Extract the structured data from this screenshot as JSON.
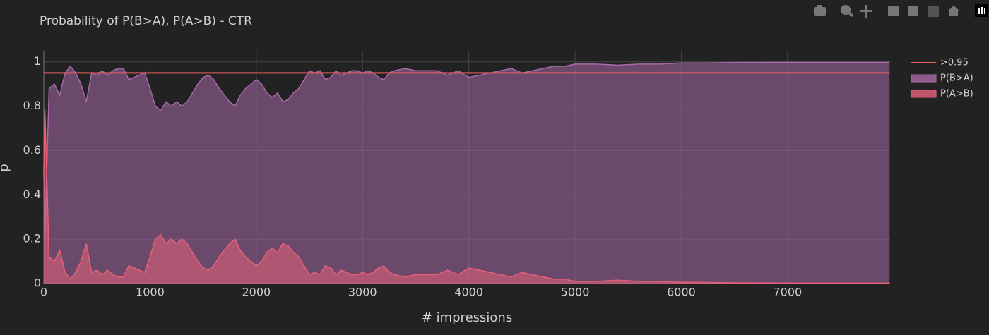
{
  "chart_data": {
    "type": "area",
    "title": "Probability of P(B>A), P(A>B) - CTR",
    "x_label": "# impressions",
    "y_label": "p",
    "x": [
      0,
      10,
      50,
      100,
      150,
      200,
      250,
      300,
      350,
      400,
      450,
      500,
      550,
      600,
      650,
      700,
      750,
      800,
      850,
      900,
      950,
      1000,
      1050,
      1100,
      1150,
      1200,
      1250,
      1300,
      1350,
      1400,
      1450,
      1500,
      1550,
      1600,
      1650,
      1700,
      1750,
      1800,
      1850,
      1900,
      1950,
      2000,
      2050,
      2100,
      2150,
      2200,
      2250,
      2300,
      2350,
      2400,
      2450,
      2500,
      2550,
      2600,
      2650,
      2700,
      2750,
      2800,
      2850,
      2900,
      2950,
      3000,
      3050,
      3100,
      3150,
      3200,
      3250,
      3300,
      3400,
      3500,
      3600,
      3700,
      3800,
      3900,
      4000,
      4100,
      4200,
      4300,
      4400,
      4500,
      4600,
      4700,
      4800,
      4900,
      5000,
      5200,
      5400,
      5600,
      5800,
      6000,
      6200,
      6500,
      7000,
      7500,
      7960
    ],
    "series": [
      {
        "name": ">0.95",
        "kind": "line",
        "color": "#e8605d",
        "x": [
          0,
          7960
        ],
        "values": [
          0.95,
          0.95
        ]
      },
      {
        "name": "P(B>A)",
        "kind": "area",
        "color": "#a86aa8",
        "values": [
          0.5,
          0.21,
          0.88,
          0.9,
          0.85,
          0.95,
          0.98,
          0.95,
          0.9,
          0.82,
          0.95,
          0.94,
          0.96,
          0.94,
          0.96,
          0.97,
          0.97,
          0.92,
          0.93,
          0.94,
          0.95,
          0.88,
          0.8,
          0.78,
          0.82,
          0.8,
          0.82,
          0.8,
          0.82,
          0.86,
          0.9,
          0.93,
          0.94,
          0.92,
          0.88,
          0.85,
          0.82,
          0.8,
          0.85,
          0.88,
          0.9,
          0.92,
          0.9,
          0.86,
          0.84,
          0.86,
          0.82,
          0.83,
          0.86,
          0.88,
          0.92,
          0.96,
          0.95,
          0.96,
          0.92,
          0.93,
          0.96,
          0.94,
          0.95,
          0.96,
          0.96,
          0.95,
          0.96,
          0.95,
          0.93,
          0.92,
          0.95,
          0.96,
          0.97,
          0.96,
          0.96,
          0.96,
          0.94,
          0.96,
          0.93,
          0.94,
          0.95,
          0.96,
          0.97,
          0.95,
          0.96,
          0.97,
          0.98,
          0.98,
          0.99,
          0.99,
          0.985,
          0.99,
          0.99,
          0.995,
          0.995,
          0.997,
          0.998,
          0.998,
          0.998
        ]
      },
      {
        "name": "P(A>B)",
        "kind": "area",
        "color": "#e8607a",
        "values": [
          0.5,
          0.79,
          0.12,
          0.1,
          0.15,
          0.05,
          0.02,
          0.05,
          0.1,
          0.18,
          0.05,
          0.06,
          0.04,
          0.06,
          0.04,
          0.03,
          0.03,
          0.08,
          0.07,
          0.06,
          0.05,
          0.12,
          0.2,
          0.22,
          0.18,
          0.2,
          0.18,
          0.2,
          0.18,
          0.14,
          0.1,
          0.07,
          0.06,
          0.08,
          0.12,
          0.15,
          0.18,
          0.2,
          0.15,
          0.12,
          0.1,
          0.08,
          0.1,
          0.14,
          0.16,
          0.14,
          0.18,
          0.17,
          0.14,
          0.12,
          0.08,
          0.04,
          0.05,
          0.04,
          0.08,
          0.07,
          0.04,
          0.06,
          0.05,
          0.04,
          0.04,
          0.05,
          0.04,
          0.05,
          0.07,
          0.08,
          0.05,
          0.04,
          0.03,
          0.04,
          0.04,
          0.04,
          0.06,
          0.04,
          0.07,
          0.06,
          0.05,
          0.04,
          0.03,
          0.05,
          0.04,
          0.03,
          0.02,
          0.02,
          0.01,
          0.01,
          0.015,
          0.01,
          0.01,
          0.005,
          0.005,
          0.003,
          0.002,
          0.002,
          0.002
        ]
      }
    ],
    "xlim": [
      0,
      7965
    ],
    "ylim": [
      0,
      1.05
    ],
    "xticks": [
      0,
      1000,
      2000,
      3000,
      4000,
      5000,
      6000,
      7000
    ],
    "yticks": [
      0,
      0.2,
      0.4,
      0.6,
      0.8,
      1
    ],
    "grid": true
  }
}
